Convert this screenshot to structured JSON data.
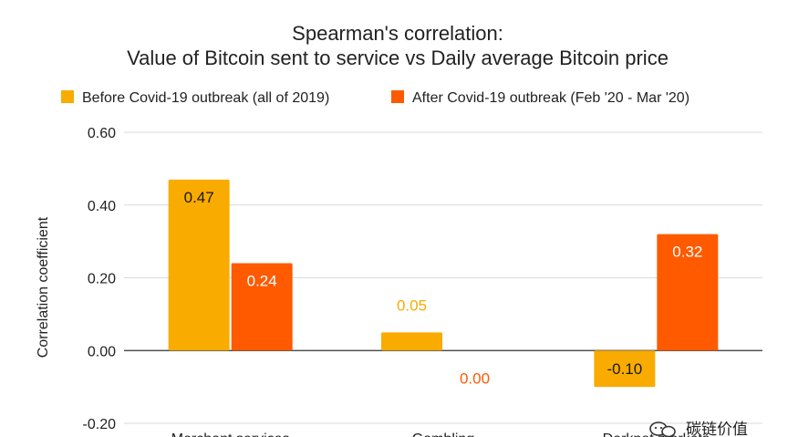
{
  "chart_data": {
    "type": "bar",
    "title": "Spearman's correlation:",
    "subtitle": "Value of Bitcoin sent to service vs Daily average Bitcoin price",
    "xlabel": "",
    "ylabel": "Correlation coefficient",
    "ylim": [
      -0.2,
      0.6
    ],
    "yticks": [
      "0.60",
      "0.40",
      "0.20",
      "0.00",
      "-0.20"
    ],
    "ytick_values": [
      0.6,
      0.4,
      0.2,
      0.0,
      -0.2
    ],
    "grid": true,
    "legend_position": "top",
    "categories": [
      "Merchant services",
      "Gambling",
      "Darknet markets"
    ],
    "series": [
      {
        "name": "Before Covid-19 outbreak (all of 2019)",
        "color": "#F9AB00",
        "values": [
          0.47,
          0.05,
          -0.1
        ],
        "labels": [
          "0.47",
          "0.05",
          "-0.10"
        ]
      },
      {
        "name": "After Covid-19 outbreak (Feb '20 - Mar '20)",
        "color": "#FF5A00",
        "values": [
          0.24,
          0.0,
          0.32
        ],
        "labels": [
          "0.24",
          "0.00",
          "0.32"
        ]
      }
    ]
  },
  "watermark": {
    "text": "碳链价值",
    "icon": "wechat-icon"
  }
}
